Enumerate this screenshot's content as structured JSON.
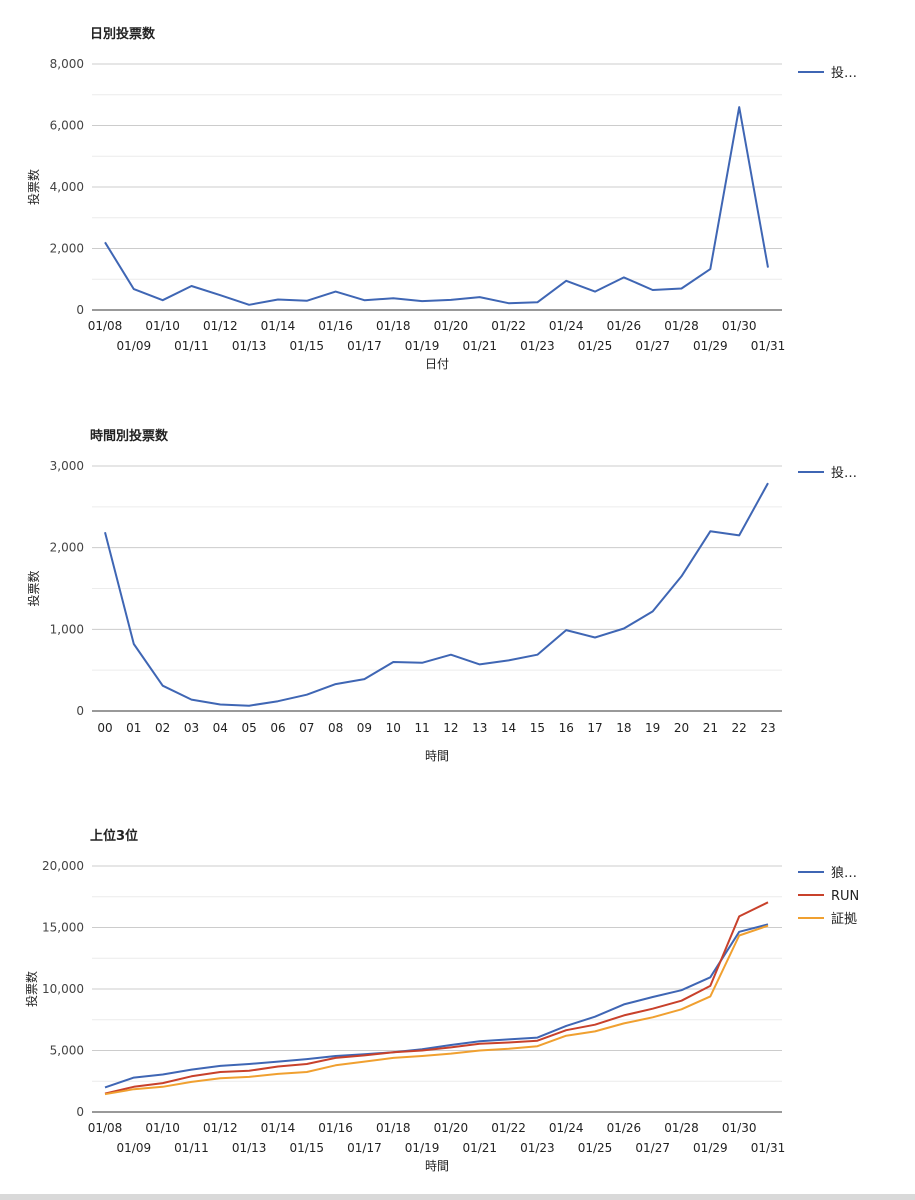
{
  "chart_data": [
    {
      "type": "line",
      "title": "日別投票数",
      "xlabel": "日付",
      "ylabel": "投票数",
      "ylim": [
        0,
        8000
      ],
      "yticks": [
        "0",
        "2,000",
        "4,000",
        "6,000",
        "8,000"
      ],
      "ytick_values": [
        0,
        2000,
        4000,
        6000,
        8000
      ],
      "categories": [
        "01/08",
        "01/09",
        "01/10",
        "01/11",
        "01/12",
        "01/13",
        "01/14",
        "01/15",
        "01/16",
        "01/17",
        "01/18",
        "01/19",
        "01/20",
        "01/21",
        "01/22",
        "01/23",
        "01/24",
        "01/25",
        "01/26",
        "01/27",
        "01/28",
        "01/29",
        "01/30",
        "01/31"
      ],
      "legend_position": "right",
      "series": [
        {
          "name": "投…",
          "color": "#3f66b4",
          "values": [
            2200,
            680,
            320,
            780,
            480,
            170,
            340,
            300,
            600,
            320,
            380,
            290,
            330,
            420,
            220,
            250,
            950,
            600,
            1060,
            650,
            700,
            1330,
            6600,
            1380
          ]
        }
      ]
    },
    {
      "type": "line",
      "title": "時間別投票数",
      "xlabel": "時間",
      "ylabel": "投票数",
      "ylim": [
        0,
        3000
      ],
      "yticks": [
        "0",
        "1,000",
        "2,000",
        "3,000"
      ],
      "ytick_values": [
        0,
        1000,
        2000,
        3000
      ],
      "categories": [
        "00",
        "01",
        "02",
        "03",
        "04",
        "05",
        "06",
        "07",
        "08",
        "09",
        "10",
        "11",
        "12",
        "13",
        "14",
        "15",
        "16",
        "17",
        "18",
        "19",
        "20",
        "21",
        "22",
        "23"
      ],
      "legend_position": "right",
      "series": [
        {
          "name": "投…",
          "color": "#3f66b4",
          "values": [
            2190,
            820,
            310,
            140,
            80,
            65,
            120,
            200,
            330,
            390,
            600,
            590,
            690,
            570,
            620,
            690,
            990,
            900,
            1010,
            1220,
            1650,
            2200,
            2150,
            2790
          ]
        }
      ]
    },
    {
      "type": "line",
      "title": "上位3位",
      "xlabel": "時間",
      "ylabel": "投票数",
      "ylim": [
        0,
        20000
      ],
      "yticks": [
        "0",
        "5,000",
        "10,000",
        "15,000",
        "20,000"
      ],
      "ytick_values": [
        0,
        5000,
        10000,
        15000,
        20000
      ],
      "categories": [
        "01/08",
        "01/09",
        "01/10",
        "01/11",
        "01/12",
        "01/13",
        "01/14",
        "01/15",
        "01/16",
        "01/17",
        "01/18",
        "01/19",
        "01/20",
        "01/21",
        "01/22",
        "01/23",
        "01/24",
        "01/25",
        "01/26",
        "01/27",
        "01/28",
        "01/29",
        "01/30",
        "01/31"
      ],
      "legend_position": "right",
      "series": [
        {
          "name": "狼…",
          "color": "#3f66b4",
          "values": [
            2000,
            2800,
            3050,
            3450,
            3750,
            3900,
            4100,
            4300,
            4550,
            4700,
            4850,
            5100,
            5450,
            5750,
            5900,
            6050,
            7000,
            7750,
            8750,
            9350,
            9900,
            10950,
            14650,
            15250
          ]
        },
        {
          "name": "RUN",
          "color": "#c8412b",
          "values": [
            1500,
            2050,
            2350,
            2900,
            3250,
            3350,
            3700,
            3900,
            4400,
            4600,
            4850,
            5000,
            5250,
            5550,
            5650,
            5800,
            6650,
            7100,
            7850,
            8400,
            9050,
            10250,
            15900,
            17050
          ]
        },
        {
          "name": "証拠",
          "color": "#f0a030",
          "values": [
            1450,
            1850,
            2050,
            2450,
            2750,
            2850,
            3100,
            3250,
            3800,
            4100,
            4400,
            4550,
            4750,
            5000,
            5150,
            5350,
            6200,
            6550,
            7200,
            7700,
            8350,
            9400,
            14350,
            15150
          ]
        }
      ]
    }
  ]
}
